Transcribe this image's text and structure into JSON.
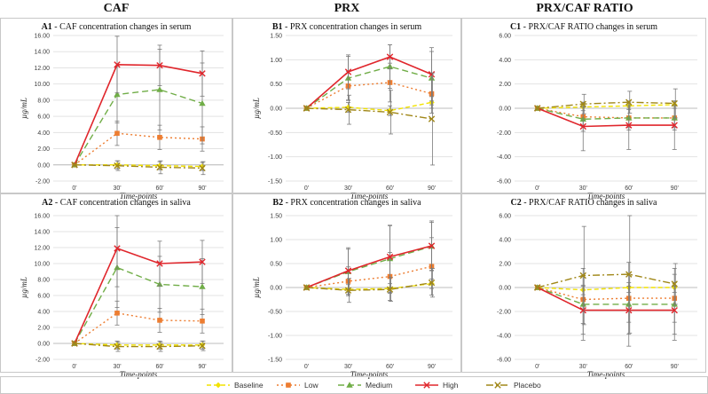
{
  "column_titles": [
    "CAF",
    "PRX",
    "PRX/CAF RATIO"
  ],
  "legend": [
    {
      "name": "Baseline",
      "color": "#f2e200",
      "dash": "5,3",
      "marker": "diamond"
    },
    {
      "name": "Low",
      "color": "#ed7d31",
      "dash": "2,3",
      "marker": "square"
    },
    {
      "name": "Medium",
      "color": "#70ad47",
      "dash": "7,4",
      "marker": "triangle"
    },
    {
      "name": "High",
      "color": "#e0262c",
      "dash": "",
      "marker": "x"
    },
    {
      "name": "Placebo",
      "color": "#a08718",
      "dash": "8,3,2,3",
      "marker": "x"
    }
  ],
  "chart_data": [
    {
      "id": "A1",
      "type": "line",
      "title_prefix": "A1",
      "title": " - CAF concentration changes in serum",
      "xlabel": "Time-points",
      "ylabel": "µg/mL",
      "categories": [
        "0'",
        "30'",
        "60'",
        "90'"
      ],
      "ylim": [
        -2,
        16
      ],
      "ytick_step": 2,
      "ytick_decimals": 2,
      "series": [
        {
          "name": "Baseline",
          "values": [
            0,
            0,
            -0.1,
            -0.2
          ],
          "err": [
            0,
            0.5,
            0.5,
            0.5
          ]
        },
        {
          "name": "Low",
          "values": [
            0,
            3.9,
            3.4,
            3.2
          ],
          "err": [
            0,
            1.5,
            1.5,
            1.5
          ]
        },
        {
          "name": "Medium",
          "values": [
            0,
            8.7,
            9.3,
            7.6
          ],
          "err": [
            0,
            3.5,
            5.0,
            5.0
          ]
        },
        {
          "name": "High",
          "values": [
            0,
            12.4,
            12.3,
            11.3
          ],
          "err": [
            0,
            3.5,
            2.5,
            2.8
          ]
        },
        {
          "name": "Placebo",
          "values": [
            0,
            -0.1,
            -0.3,
            -0.4
          ],
          "err": [
            0,
            0.6,
            0.8,
            0.8
          ]
        }
      ]
    },
    {
      "id": "B1",
      "type": "line",
      "title_prefix": "B1",
      "title": " - PRX concentration changes in serum",
      "xlabel": "Time-points",
      "ylabel": "µg/mL",
      "categories": [
        "0'",
        "30'",
        "60'",
        "90'"
      ],
      "ylim": [
        -1.5,
        1.5
      ],
      "ytick_step": 0.5,
      "ytick_decimals": 2,
      "series": [
        {
          "name": "Baseline",
          "values": [
            0,
            0.02,
            -0.05,
            0.12
          ],
          "err": [
            0,
            0.1,
            0.1,
            0.12
          ]
        },
        {
          "name": "Low",
          "values": [
            0,
            0.46,
            0.53,
            0.3
          ],
          "err": [
            0,
            0.3,
            0.4,
            0.4
          ]
        },
        {
          "name": "Medium",
          "values": [
            0,
            0.62,
            0.86,
            0.62
          ],
          "err": [
            0,
            0.45,
            0.45,
            0.55
          ]
        },
        {
          "name": "High",
          "values": [
            0,
            0.75,
            1.06,
            0.7
          ],
          "err": [
            0,
            0.35,
            0.25,
            0.55
          ]
        },
        {
          "name": "Placebo",
          "values": [
            0,
            -0.03,
            -0.08,
            -0.22
          ],
          "err": [
            0,
            0.3,
            0.45,
            0.95
          ]
        }
      ]
    },
    {
      "id": "C1",
      "type": "line",
      "title_prefix": "C1",
      "title": " - PRX/CAF RATIO changes in serum",
      "xlabel": "Time-points",
      "ylabel": "",
      "categories": [
        "0'",
        "30'",
        "60'",
        "90'"
      ],
      "ylim": [
        -6,
        6
      ],
      "ytick_step": 2,
      "ytick_decimals": 2,
      "series": [
        {
          "name": "Baseline",
          "values": [
            0,
            0.1,
            0.2,
            0.3
          ],
          "err": [
            0,
            0.3,
            0.3,
            0.3
          ]
        },
        {
          "name": "Low",
          "values": [
            0,
            -0.7,
            -0.8,
            -0.8
          ],
          "err": [
            0,
            0.8,
            0.8,
            0.8
          ]
        },
        {
          "name": "Medium",
          "values": [
            0,
            -0.9,
            -0.8,
            -0.8
          ],
          "err": [
            0,
            1.0,
            1.0,
            1.0
          ]
        },
        {
          "name": "High",
          "values": [
            0,
            -1.5,
            -1.4,
            -1.4
          ],
          "err": [
            0,
            2.0,
            2.0,
            2.0
          ]
        },
        {
          "name": "Placebo",
          "values": [
            0,
            0.35,
            0.5,
            0.4
          ],
          "err": [
            0,
            0.8,
            0.9,
            1.2
          ]
        }
      ]
    },
    {
      "id": "A2",
      "type": "line",
      "title_prefix": "A2",
      "title": " - CAF concentration changes in saliva",
      "xlabel": "Time-points",
      "ylabel": "µg/mL",
      "categories": [
        "0'",
        "30'",
        "60'",
        "90'"
      ],
      "ylim": [
        -2,
        16
      ],
      "ytick_step": 2,
      "ytick_decimals": 2,
      "series": [
        {
          "name": "Baseline",
          "values": [
            0,
            -0.2,
            -0.2,
            -0.2
          ],
          "err": [
            0,
            0.5,
            0.5,
            0.5
          ]
        },
        {
          "name": "Low",
          "values": [
            0,
            3.8,
            2.9,
            2.8
          ],
          "err": [
            0,
            1.5,
            1.5,
            1.5
          ]
        },
        {
          "name": "Medium",
          "values": [
            0,
            9.5,
            7.4,
            7.1
          ],
          "err": [
            0,
            5.0,
            3.5,
            3.5
          ]
        },
        {
          "name": "High",
          "values": [
            0,
            11.9,
            10.0,
            10.2
          ],
          "err": [
            0,
            4.8,
            2.8,
            2.7
          ]
        },
        {
          "name": "Placebo",
          "values": [
            0,
            -0.4,
            -0.4,
            -0.3
          ],
          "err": [
            0,
            0.6,
            0.6,
            0.6
          ]
        }
      ]
    },
    {
      "id": "B2",
      "type": "line",
      "title_prefix": "B2",
      "title": " - PRX concentration changes in saliva",
      "xlabel": "Time-points",
      "ylabel": "µg/mL",
      "categories": [
        "0'",
        "30'",
        "60'",
        "90'"
      ],
      "ylim": [
        -1.5,
        1.5
      ],
      "ytick_step": 0.5,
      "ytick_decimals": 2,
      "series": [
        {
          "name": "Baseline",
          "values": [
            0,
            -0.04,
            -0.02,
            0.08
          ],
          "err": [
            0,
            0.1,
            0.1,
            0.1
          ]
        },
        {
          "name": "Low",
          "values": [
            0,
            0.13,
            0.23,
            0.44
          ],
          "err": [
            0,
            0.3,
            0.5,
            0.6
          ]
        },
        {
          "name": "Medium",
          "values": [
            0,
            0.33,
            0.6,
            0.86
          ],
          "err": [
            0,
            0.5,
            0.7,
            0.5
          ]
        },
        {
          "name": "High",
          "values": [
            0,
            0.35,
            0.64,
            0.87
          ],
          "err": [
            0,
            0.45,
            0.65,
            0.52
          ]
        },
        {
          "name": "Placebo",
          "values": [
            0,
            -0.06,
            -0.04,
            0.1
          ],
          "err": [
            0,
            0.25,
            0.25,
            0.3
          ]
        }
      ]
    },
    {
      "id": "C2",
      "type": "line",
      "title_prefix": "C2",
      "title": " - PRX/CAF RATIO changes in saliva",
      "xlabel": "Time-points",
      "ylabel": "",
      "categories": [
        "0'",
        "30'",
        "60'",
        "90'"
      ],
      "ylim": [
        -6,
        6
      ],
      "ytick_step": 2,
      "ytick_decimals": 2,
      "series": [
        {
          "name": "Baseline",
          "values": [
            0,
            -0.2,
            0.0,
            0.0
          ],
          "err": [
            0,
            0.4,
            0.4,
            0.4
          ]
        },
        {
          "name": "Low",
          "values": [
            0,
            -1.0,
            -0.9,
            -0.9
          ],
          "err": [
            0,
            2.0,
            2.0,
            2.0
          ]
        },
        {
          "name": "Medium",
          "values": [
            0,
            -1.4,
            -1.4,
            -1.4
          ],
          "err": [
            0,
            3.0,
            3.5,
            3.0
          ]
        },
        {
          "name": "High",
          "values": [
            0,
            -1.9,
            -1.9,
            -1.9
          ],
          "err": [
            0,
            2.0,
            2.0,
            2.0
          ]
        },
        {
          "name": "Placebo",
          "values": [
            0,
            1.0,
            1.1,
            0.3
          ],
          "err": [
            0,
            4.1,
            4.9,
            1.7
          ]
        }
      ]
    }
  ]
}
